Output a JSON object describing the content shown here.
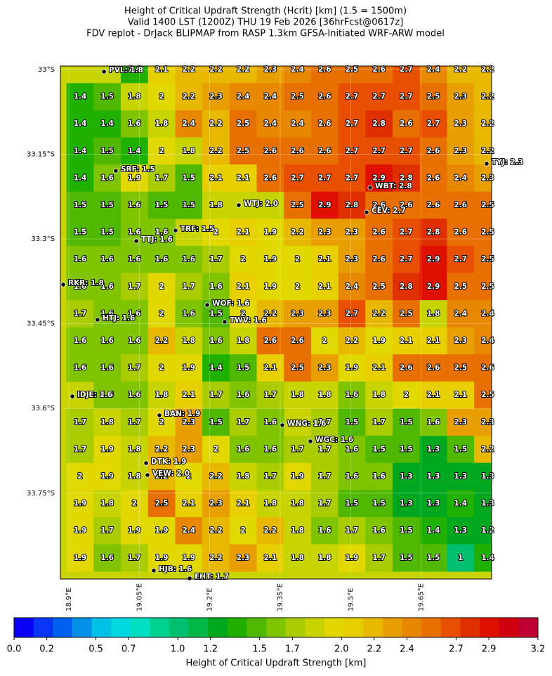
{
  "title": [
    "Height of Critical Updraft Strength (Hcrit) [km] (1.5 = 1500m)",
    "Valid 1400 LST (1200Z) THU 19 Feb 2026 [36hrFcst@0617z]",
    "FDV replot - DrJack BLIPMAP from RASP 1.3km GFSA-Initiated WRF-ARW model"
  ],
  "map": {
    "xlim": [
      18.882,
      19.8
    ],
    "ylim": [
      -33.902,
      -32.994
    ],
    "xticks": [
      {
        "value": 18.9,
        "label": "18.9°E"
      },
      {
        "value": 19.05,
        "label": "19.05°E"
      },
      {
        "value": 19.2,
        "label": "19.2°E"
      },
      {
        "value": 19.35,
        "label": "19.35°E"
      },
      {
        "value": 19.5,
        "label": "19.5°E"
      },
      {
        "value": 19.65,
        "label": "19.65°E"
      }
    ],
    "yticks": [
      {
        "value": -33,
        "label": "33°S"
      },
      {
        "value": -33.15,
        "label": "33.15°S"
      },
      {
        "value": -33.3,
        "label": "33.3°S"
      },
      {
        "value": -33.45,
        "label": "33.45°S"
      },
      {
        "value": -33.6,
        "label": "33.6°S"
      },
      {
        "value": -33.75,
        "label": "33.75°S"
      }
    ],
    "grid": [
      [
        null,
        null,
        1.4,
        2.1,
        2.2,
        2.2,
        2.2,
        2.3,
        2.4,
        2.6,
        2.5,
        2.6,
        2.7,
        2.4,
        2.2,
        2.2
      ],
      [
        1.4,
        1.5,
        1.8,
        2.0,
        2.2,
        2.3,
        2.4,
        2.4,
        2.5,
        2.6,
        2.7,
        2.7,
        2.7,
        2.5,
        2.3,
        2.2
      ],
      [
        1.4,
        1.4,
        1.6,
        1.8,
        2.4,
        2.2,
        2.5,
        2.4,
        2.4,
        2.6,
        2.7,
        2.8,
        2.6,
        2.7,
        2.3,
        2.2
      ],
      [
        1.4,
        1.5,
        1.4,
        2.0,
        1.8,
        2.2,
        2.5,
        2.6,
        2.6,
        2.6,
        2.7,
        2.7,
        2.7,
        2.6,
        2.3,
        2.2
      ],
      [
        1.4,
        1.6,
        1.9,
        1.7,
        1.5,
        2.1,
        2.1,
        2.6,
        2.7,
        2.7,
        2.7,
        2.9,
        2.8,
        2.6,
        2.4,
        2.3
      ],
      [
        1.5,
        1.5,
        1.6,
        1.5,
        1.5,
        1.8,
        null,
        null,
        2.5,
        2.9,
        2.8,
        2.6,
        2.6,
        2.6,
        2.6,
        2.5
      ],
      [
        1.5,
        1.5,
        1.6,
        1.6,
        null,
        2.0,
        2.1,
        1.9,
        2.2,
        2.3,
        2.3,
        2.6,
        2.7,
        2.8,
        2.6,
        2.5
      ],
      [
        1.6,
        1.6,
        1.6,
        1.6,
        1.6,
        1.7,
        2.0,
        1.9,
        2.0,
        2.1,
        2.3,
        2.6,
        2.7,
        2.9,
        2.7,
        2.5
      ],
      [
        1.6,
        1.6,
        1.7,
        2.0,
        1.7,
        1.6,
        2.1,
        1.9,
        2.0,
        2.1,
        2.4,
        2.5,
        2.8,
        2.9,
        2.5,
        2.5
      ],
      [
        1.7,
        1.6,
        1.6,
        2.0,
        1.6,
        1.5,
        2.0,
        2.2,
        2.3,
        2.3,
        2.7,
        2.2,
        2.5,
        1.8,
        2.4,
        2.4
      ],
      [
        1.6,
        1.6,
        1.6,
        2.2,
        1.8,
        1.6,
        1.8,
        2.6,
        2.6,
        2.0,
        2.2,
        1.9,
        2.1,
        2.1,
        2.3,
        2.4
      ],
      [
        1.6,
        1.6,
        1.7,
        2.0,
        1.9,
        1.4,
        1.5,
        2.1,
        2.5,
        2.3,
        1.9,
        2.1,
        2.6,
        2.6,
        2.5,
        2.6
      ],
      [
        null,
        1.6,
        1.6,
        1.8,
        2.1,
        1.7,
        1.6,
        1.7,
        1.8,
        1.8,
        1.6,
        1.8,
        2.0,
        2.1,
        2.1,
        2.5
      ],
      [
        1.7,
        1.8,
        1.7,
        2.0,
        2.3,
        1.5,
        1.7,
        1.6,
        null,
        1.7,
        1.5,
        1.7,
        1.5,
        1.6,
        2.3,
        2.3
      ],
      [
        1.7,
        1.9,
        1.8,
        2.2,
        2.3,
        2.0,
        1.6,
        1.6,
        1.7,
        1.7,
        1.6,
        1.5,
        1.5,
        1.3,
        1.5,
        2.2
      ],
      [
        2.0,
        1.9,
        1.8,
        2.2,
        2.0,
        2.2,
        1.8,
        1.7,
        1.9,
        1.7,
        1.6,
        1.6,
        1.3,
        1.3,
        1.3,
        1.3
      ],
      [
        1.9,
        1.8,
        2.0,
        2.5,
        2.1,
        2.3,
        2.1,
        1.8,
        1.8,
        1.7,
        1.5,
        1.5,
        1.3,
        1.3,
        1.4,
        1.3
      ],
      [
        1.9,
        1.7,
        1.9,
        1.9,
        2.4,
        2.2,
        2.0,
        2.2,
        1.8,
        1.6,
        1.7,
        1.6,
        1.5,
        1.4,
        1.3,
        1.2
      ],
      [
        1.9,
        1.6,
        1.7,
        1.9,
        1.9,
        2.2,
        2.3,
        2.1,
        1.8,
        1.8,
        1.9,
        1.7,
        1.5,
        1.5,
        1.0,
        1.4
      ]
    ],
    "stations": [
      "PVL: 1.8",
      "SRF: 1.5",
      "WTJ: 2.0",
      "WBT: 2.8",
      "CEV: 2.7",
      "TYJ: 2.3",
      "TRF: 1.5",
      "TTJ: 1.6",
      "RKR: 1.8",
      "WOF: 1.6",
      "HTJ: 1.6",
      "TWV: 1.6",
      "IDJE: 1.6",
      "BAN: 1.9",
      "WNG: 1.6",
      "WGC: 1.6",
      "DTK: 1.9",
      "VEW: 2.0",
      "HJB: 1.6",
      "EHT: 1.7"
    ]
  },
  "colorbar": {
    "label": "Height of Critical Updraft Strength [km]",
    "lim": [
      0,
      3.2
    ],
    "colors": [
      "#0a00f5",
      "#0a35f5",
      "#0060f0",
      "#0090e8",
      "#00c0e8",
      "#00d8e0",
      "#00e0c0",
      "#00d090",
      "#00c070",
      "#00b848",
      "#00a820",
      "#20b000",
      "#50b800",
      "#80c400",
      "#a8cc00",
      "#c8d400",
      "#e0d800",
      "#e8d000",
      "#e8b800",
      "#e8a000",
      "#e88800",
      "#e87000",
      "#e85000",
      "#e03000",
      "#e01000",
      "#d00010",
      "#c00030"
    ],
    "ticks": [
      {
        "value": 0,
        "label": "0.0"
      },
      0.2,
      0.5,
      0.7,
      {
        "value": 1,
        "label": "1.0"
      },
      1.2,
      1.5,
      1.7,
      {
        "value": 2,
        "label": "2.0"
      },
      2.2,
      2.4,
      2.7,
      2.9,
      3.2
    ]
  }
}
